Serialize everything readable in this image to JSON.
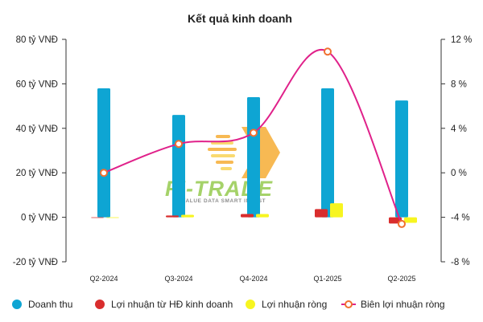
{
  "chart_data": {
    "type": "bar",
    "title": "Kết quả kinh doanh",
    "categories": [
      "Q2-2024",
      "Q3-2024",
      "Q4-2024",
      "Q1-2025",
      "Q2-2025"
    ],
    "y_left": {
      "ticks": [
        80,
        60,
        40,
        20,
        0,
        -20
      ],
      "tick_labels": [
        "80 tỷ VNĐ",
        "60 tỷ VNĐ",
        "40 tỷ VNĐ",
        "20 tỷ VNĐ",
        "0 tỷ VNĐ",
        "-20 tỷ VNĐ"
      ],
      "ylim": [
        -20,
        80
      ]
    },
    "y_right": {
      "ticks": [
        12,
        8,
        4,
        0,
        -4,
        -8
      ],
      "tick_labels": [
        "12 %",
        "8 %",
        "4 %",
        "0 %",
        "-4 %",
        "-8 %"
      ],
      "ylim": [
        -8,
        12
      ]
    },
    "series": [
      {
        "name": "Doanh thu",
        "type": "bar",
        "axis": "left",
        "color": "#0ea5d3",
        "values": [
          58,
          46,
          54,
          58,
          52.5
        ]
      },
      {
        "name": "Lợi nhuận từ HĐ kinh doanh",
        "type": "bar",
        "axis": "left",
        "color": "#d92d2d",
        "values": [
          -0.3,
          0.8,
          1.5,
          3.7,
          -2.8
        ]
      },
      {
        "name": "Lợi nhuận ròng",
        "type": "bar",
        "axis": "left",
        "color": "#f7f520",
        "values": [
          0,
          1.1,
          1.5,
          6.3,
          -2.5
        ]
      },
      {
        "name": "Biên lợi nhuận ròng",
        "type": "line",
        "axis": "right",
        "color": "#e0218a",
        "values": [
          0,
          2.6,
          3.6,
          10.9,
          -4.6
        ]
      }
    ],
    "grid": false,
    "legend_position": "bottom"
  },
  "watermark": {
    "logo_text": "FI-TRADE",
    "tagline": "VALUE DATA SMART INVEST",
    "colors": {
      "orange": "#f5a623",
      "yellow": "#f8d048",
      "green": "#8cc63f",
      "blue": "#2a7bd1"
    }
  },
  "colors": {
    "axis": "#333333"
  }
}
